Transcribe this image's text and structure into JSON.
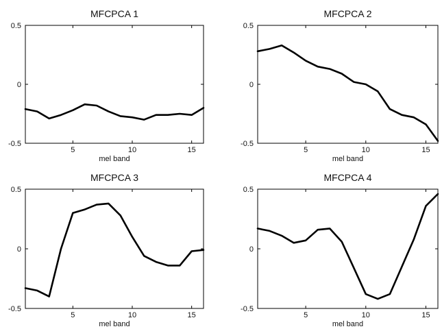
{
  "chart_data": [
    {
      "type": "line",
      "title": "MFCPCA 1",
      "xlabel": "mel band",
      "ylabel": "",
      "xlim": [
        1,
        16
      ],
      "ylim": [
        -0.5,
        0.5
      ],
      "xticks": [
        5,
        10,
        15
      ],
      "yticks": [
        0.5,
        0,
        -0.5
      ],
      "ytick_labels": [
        "0.5",
        "0",
        "-0.5"
      ],
      "grid": false,
      "series": [
        {
          "x": [
            1,
            2,
            3,
            4,
            5,
            6,
            7,
            8,
            9,
            10,
            11,
            12,
            13,
            14,
            15,
            16
          ],
          "values": [
            -0.21,
            -0.23,
            -0.29,
            -0.26,
            -0.22,
            -0.17,
            -0.18,
            -0.23,
            -0.27,
            -0.28,
            -0.3,
            -0.26,
            -0.26,
            -0.25,
            -0.26,
            -0.2
          ]
        }
      ]
    },
    {
      "type": "line",
      "title": "MFCPCA 2",
      "xlabel": "mel band",
      "ylabel": "",
      "xlim": [
        1,
        16
      ],
      "ylim": [
        -0.5,
        0.5
      ],
      "xticks": [
        5,
        10,
        15
      ],
      "yticks": [
        0.5,
        0,
        -0.5
      ],
      "ytick_labels": [
        "0.5",
        "0",
        "-0.5"
      ],
      "grid": false,
      "series": [
        {
          "x": [
            1,
            2,
            3,
            4,
            5,
            6,
            7,
            8,
            9,
            10,
            11,
            12,
            13,
            14,
            15,
            16
          ],
          "values": [
            0.28,
            0.3,
            0.33,
            0.27,
            0.2,
            0.15,
            0.13,
            0.09,
            0.02,
            0.0,
            -0.06,
            -0.21,
            -0.26,
            -0.28,
            -0.34,
            -0.48
          ]
        }
      ]
    },
    {
      "type": "line",
      "title": "MFCPCA 3",
      "xlabel": "mel band",
      "ylabel": "",
      "xlim": [
        1,
        16
      ],
      "ylim": [
        -0.5,
        0.5
      ],
      "xticks": [
        5,
        10,
        15
      ],
      "yticks": [
        0.5,
        0,
        -0.5
      ],
      "ytick_labels": [
        "0.5",
        "0",
        "-0.5"
      ],
      "grid": false,
      "series": [
        {
          "x": [
            1,
            2,
            3,
            4,
            5,
            6,
            7,
            8,
            9,
            10,
            11,
            12,
            13,
            14,
            15,
            16
          ],
          "values": [
            -0.33,
            -0.35,
            -0.4,
            0.0,
            0.3,
            0.33,
            0.37,
            0.38,
            0.28,
            0.1,
            -0.06,
            -0.11,
            -0.14,
            -0.14,
            -0.02,
            -0.01
          ]
        }
      ]
    },
    {
      "type": "line",
      "title": "MFCPCA 4",
      "xlabel": "mel band",
      "ylabel": "",
      "xlim": [
        1,
        16
      ],
      "ylim": [
        -0.5,
        0.5
      ],
      "xticks": [
        5,
        10,
        15
      ],
      "yticks": [
        0.5,
        0,
        -0.5
      ],
      "ytick_labels": [
        "0.5",
        "0",
        "-0.5"
      ],
      "grid": false,
      "series": [
        {
          "x": [
            1,
            2,
            3,
            4,
            5,
            6,
            7,
            8,
            9,
            10,
            11,
            12,
            13,
            14,
            15,
            16
          ],
          "values": [
            0.17,
            0.15,
            0.11,
            0.05,
            0.07,
            0.16,
            0.17,
            0.06,
            -0.16,
            -0.38,
            -0.42,
            -0.38,
            -0.15,
            0.08,
            0.36,
            0.46
          ]
        }
      ]
    }
  ]
}
